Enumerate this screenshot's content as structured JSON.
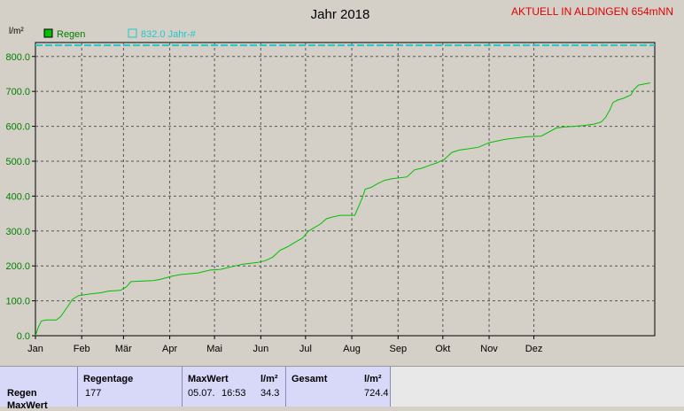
{
  "header": {
    "title": "Jahr 2018",
    "station": "AKTUELL IN ALDINGEN 654mNN",
    "unit": "l/m²"
  },
  "legend": {
    "item1": "Regen",
    "item2": "832.0 Jahr-#"
  },
  "colors": {
    "background": "#d4d0c8",
    "series": "#00c000",
    "reference": "#20c8c8",
    "station": "#e00000",
    "axis_text": "#008000",
    "table": "#d8d8f8"
  },
  "chart_data": {
    "type": "line",
    "title": "Jahr 2018",
    "ylabel": "l/m²",
    "ylim": [
      0,
      840
    ],
    "yticks": [
      "0.0",
      "100.0",
      "200.0",
      "300.0",
      "400.0",
      "500.0",
      "600.0",
      "700.0",
      "800.0"
    ],
    "xticks": [
      "Jan",
      "Feb",
      "Mär",
      "Apr",
      "Mai",
      "Jun",
      "Jul",
      "Aug",
      "Sep",
      "Okt",
      "Nov",
      "Dez"
    ],
    "grid": true,
    "legend_position": "top-left",
    "reference_line": {
      "name": "832.0 Jahr-#",
      "value": 832.0
    },
    "series": [
      {
        "name": "Regen",
        "points": [
          [
            1,
            0
          ],
          [
            3,
            25
          ],
          [
            5,
            42
          ],
          [
            8,
            45
          ],
          [
            15,
            45
          ],
          [
            18,
            55
          ],
          [
            22,
            80
          ],
          [
            26,
            105
          ],
          [
            30,
            115
          ],
          [
            38,
            120
          ],
          [
            45,
            123
          ],
          [
            50,
            128
          ],
          [
            58,
            130
          ],
          [
            62,
            140
          ],
          [
            65,
            155
          ],
          [
            80,
            158
          ],
          [
            85,
            162
          ],
          [
            92,
            170
          ],
          [
            98,
            175
          ],
          [
            110,
            180
          ],
          [
            118,
            188
          ],
          [
            125,
            190
          ],
          [
            135,
            200
          ],
          [
            140,
            205
          ],
          [
            150,
            210
          ],
          [
            155,
            215
          ],
          [
            160,
            225
          ],
          [
            165,
            245
          ],
          [
            170,
            255
          ],
          [
            175,
            268
          ],
          [
            180,
            280
          ],
          [
            184,
            300
          ],
          [
            188,
            310
          ],
          [
            192,
            320
          ],
          [
            196,
            335
          ],
          [
            200,
            340
          ],
          [
            205,
            345
          ],
          [
            215,
            345
          ],
          [
            220,
            395
          ],
          [
            222,
            420
          ],
          [
            226,
            425
          ],
          [
            230,
            435
          ],
          [
            235,
            445
          ],
          [
            240,
            450
          ],
          [
            250,
            455
          ],
          [
            255,
            475
          ],
          [
            260,
            480
          ],
          [
            265,
            488
          ],
          [
            270,
            495
          ],
          [
            275,
            505
          ],
          [
            280,
            525
          ],
          [
            285,
            532
          ],
          [
            290,
            535
          ],
          [
            298,
            540
          ],
          [
            305,
            553
          ],
          [
            315,
            562
          ],
          [
            320,
            565
          ],
          [
            330,
            570
          ],
          [
            340,
            572
          ],
          [
            350,
            595
          ],
          [
            355,
            598
          ],
          [
            362,
            600
          ],
          [
            368,
            602
          ],
          [
            375,
            606
          ],
          [
            380,
            612
          ],
          [
            383,
            625
          ],
          [
            386,
            648
          ],
          [
            388,
            668
          ],
          [
            391,
            675
          ],
          [
            395,
            680
          ],
          [
            400,
            690
          ],
          [
            402,
            705
          ],
          [
            405,
            718
          ],
          [
            410,
            722
          ],
          [
            413,
            724.4
          ]
        ]
      }
    ]
  },
  "table": {
    "row_label": "Regen",
    "row_label2": "MaxWert",
    "col_regentage": "Regentage",
    "regentage": "177",
    "col_maxwert": "MaxWert",
    "unit_max": "l/m²",
    "max_date": "05.07.",
    "max_time": "16:53",
    "max_value": "34.3",
    "col_gesamt": "Gesamt",
    "unit_gesamt": "l/m²",
    "gesamt": "724.4"
  }
}
